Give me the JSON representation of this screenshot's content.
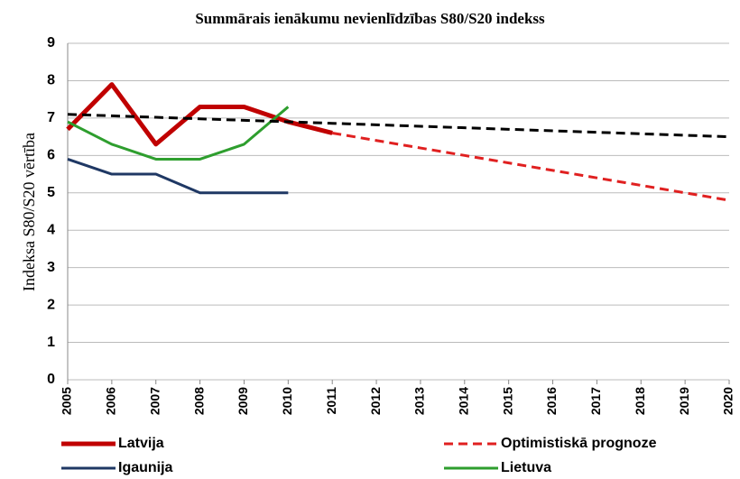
{
  "chart_data": {
    "type": "line",
    "title": "Summārais ienākumu nevienlīdzības S80/S20 indekss",
    "y_label": "Indeksa  S80/S20 vērtība",
    "categories": [
      "2005",
      "2006",
      "2007",
      "2008",
      "2009",
      "2010",
      "2011",
      "2012",
      "2013",
      "2014",
      "2015",
      "2016",
      "2017",
      "2018",
      "2019",
      "2020"
    ],
    "ylim": [
      0,
      9
    ],
    "yticks": [
      0,
      1,
      2,
      3,
      4,
      5,
      6,
      7,
      8,
      9
    ],
    "grid": true,
    "legend": "bottom",
    "series": [
      {
        "name": "Latvija",
        "color": "#c00000",
        "width": 5,
        "dashed": false,
        "values": [
          6.7,
          7.9,
          6.3,
          7.3,
          7.3,
          6.9,
          6.6,
          null,
          null,
          null,
          null,
          null,
          null,
          null,
          null,
          null
        ]
      },
      {
        "name": "Optimistiskā prognoze",
        "color": "#e02020",
        "width": 3,
        "dashed": true,
        "values": [
          null,
          null,
          null,
          null,
          null,
          null,
          6.6,
          6.4,
          6.2,
          6.0,
          5.8,
          5.6,
          5.4,
          5.2,
          5.0,
          4.8
        ]
      },
      {
        "name": "Igaunija",
        "color": "#1f3864",
        "width": 3,
        "dashed": false,
        "values": [
          5.9,
          5.5,
          5.5,
          5.0,
          5.0,
          5.0,
          null,
          null,
          null,
          null,
          null,
          null,
          null,
          null,
          null,
          null
        ]
      },
      {
        "name": "Lietuva",
        "color": "#2e9e2e",
        "width": 3,
        "dashed": false,
        "values": [
          6.9,
          6.3,
          5.9,
          5.9,
          6.3,
          7.3,
          null,
          null,
          null,
          null,
          null,
          null,
          null,
          null,
          null,
          null
        ]
      },
      {
        "color": "#000000",
        "width": 3,
        "dashed": true,
        "values": [
          7.1,
          7.06,
          7.02,
          6.98,
          6.94,
          6.9,
          6.86,
          6.82,
          6.78,
          6.74,
          6.7,
          6.66,
          6.62,
          6.58,
          6.54,
          6.5
        ]
      }
    ]
  }
}
